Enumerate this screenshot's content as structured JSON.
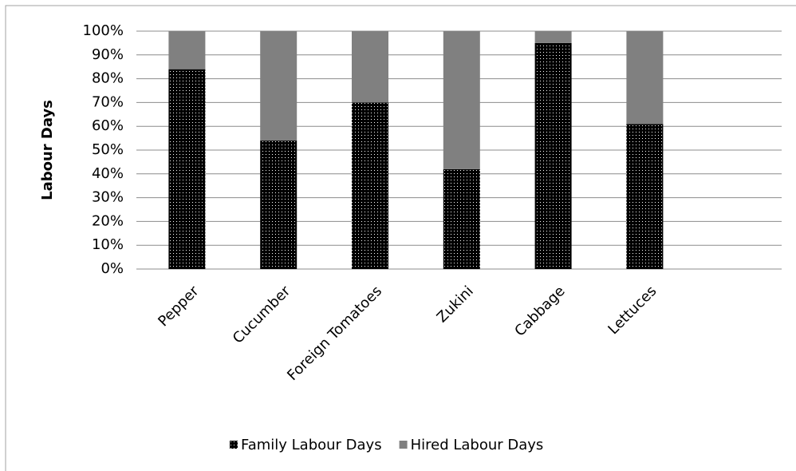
{
  "chart_data": {
    "type": "stacked_bar",
    "y_label": "Labour Days",
    "categories": [
      "Pepper",
      "Cucumber",
      "Foreign Tomatoes",
      "Zukini",
      "Cabbage",
      "Lettuces"
    ],
    "series": [
      {
        "name": "Family Labour Days",
        "color": "#000000",
        "values": [
          84,
          54,
          70,
          42,
          95,
          61
        ]
      },
      {
        "name": "Hired Labour Days",
        "color": "#808080",
        "values": [
          16,
          46,
          30,
          58,
          5,
          39
        ]
      }
    ],
    "ylim": [
      0,
      100
    ],
    "yticks": [
      {
        "value": 0,
        "label": "0%"
      },
      {
        "value": 10,
        "label": "10%"
      },
      {
        "value": 20,
        "label": "20%"
      },
      {
        "value": 30,
        "label": "30%"
      },
      {
        "value": 40,
        "label": "40%"
      },
      {
        "value": 50,
        "label": "50%"
      },
      {
        "value": 60,
        "label": "60%"
      },
      {
        "value": 70,
        "label": "70%"
      },
      {
        "value": 80,
        "label": "80%"
      },
      {
        "value": 90,
        "label": "90%"
      },
      {
        "value": 100,
        "label": "100%"
      }
    ],
    "grid": true,
    "legend": "bottom"
  }
}
